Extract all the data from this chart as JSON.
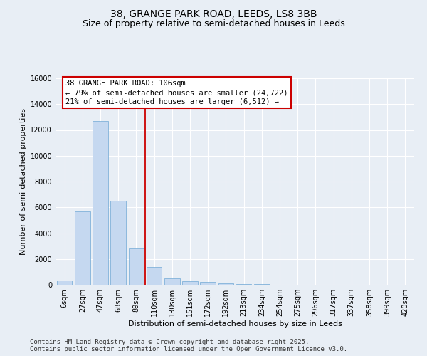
{
  "title_line1": "38, GRANGE PARK ROAD, LEEDS, LS8 3BB",
  "title_line2": "Size of property relative to semi-detached houses in Leeds",
  "xlabel": "Distribution of semi-detached houses by size in Leeds",
  "ylabel": "Number of semi-detached properties",
  "categories": [
    "6sqm",
    "27sqm",
    "47sqm",
    "68sqm",
    "89sqm",
    "110sqm",
    "130sqm",
    "151sqm",
    "172sqm",
    "192sqm",
    "213sqm",
    "234sqm",
    "254sqm",
    "275sqm",
    "296sqm",
    "317sqm",
    "337sqm",
    "358sqm",
    "399sqm",
    "420sqm"
  ],
  "values": [
    310,
    5700,
    12700,
    6500,
    2800,
    1400,
    500,
    250,
    200,
    130,
    60,
    30,
    10,
    5,
    3,
    2,
    1,
    1,
    0,
    0
  ],
  "bar_color": "#c5d8f0",
  "bar_edge_color": "#6fa8d4",
  "vline_color": "#cc0000",
  "vline_position": 4.5,
  "annotation_text": "38 GRANGE PARK ROAD: 106sqm\n← 79% of semi-detached houses are smaller (24,722)\n21% of semi-detached houses are larger (6,512) →",
  "ylim_max": 16000,
  "yticks": [
    0,
    2000,
    4000,
    6000,
    8000,
    10000,
    12000,
    14000,
    16000
  ],
  "bg_color": "#e8eef5",
  "grid_color": "#ffffff",
  "footer_line1": "Contains HM Land Registry data © Crown copyright and database right 2025.",
  "footer_line2": "Contains public sector information licensed under the Open Government Licence v3.0.",
  "title_fontsize": 10,
  "subtitle_fontsize": 9,
  "ylabel_fontsize": 8,
  "xlabel_fontsize": 8,
  "tick_fontsize": 7,
  "annot_fontsize": 7.5,
  "footer_fontsize": 6.5
}
